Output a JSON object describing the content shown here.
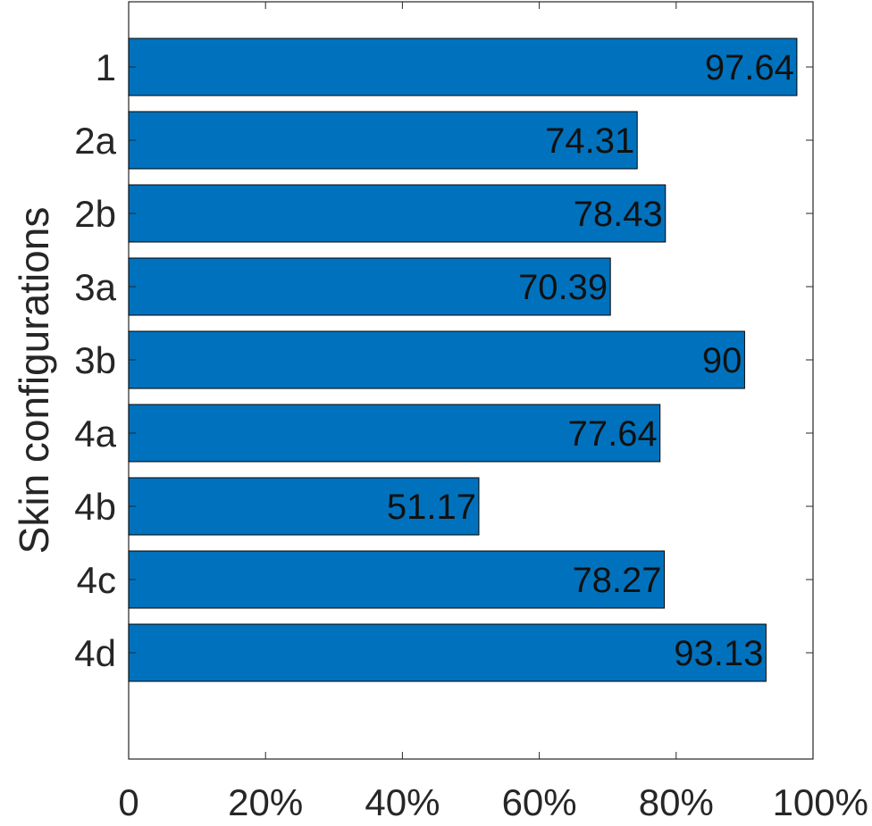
{
  "chart_data": {
    "type": "bar",
    "orientation": "horizontal",
    "title": "",
    "xlabel": "",
    "ylabel": "Skin configurations",
    "categories": [
      "1",
      "2a",
      "2b",
      "3a",
      "3b",
      "4a",
      "4b",
      "4c",
      "4d"
    ],
    "values": [
      97.64,
      74.31,
      78.43,
      70.39,
      90,
      77.64,
      51.17,
      78.27,
      93.13
    ],
    "xlim": [
      0,
      100
    ],
    "xticks": [
      0,
      20,
      40,
      60,
      80,
      100
    ],
    "xtick_labels": [
      "0",
      "20%",
      "40%",
      "60%",
      "80%",
      "100%"
    ],
    "grid": false,
    "legend": "none",
    "bar_color": "#0072BD",
    "bar_edge_color": "#000000",
    "data_labels": true
  }
}
